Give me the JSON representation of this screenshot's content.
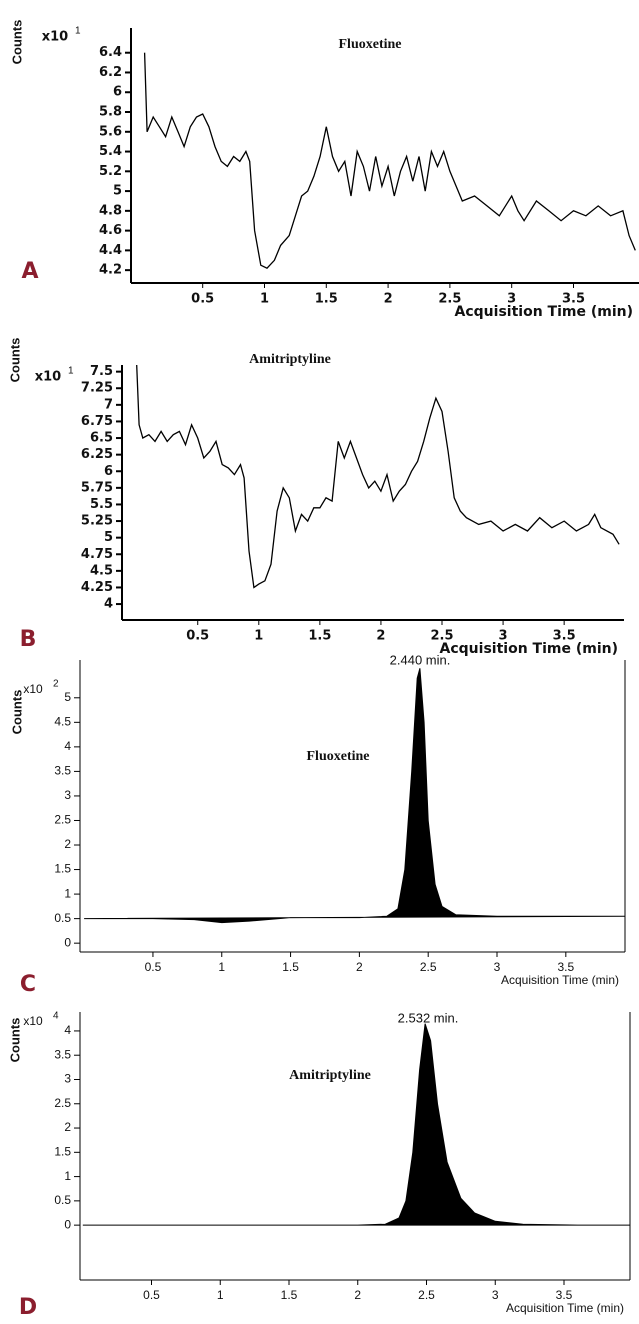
{
  "chart_data": [
    {
      "type": "line",
      "panel_label": "A",
      "title": "Fluoxetine",
      "ylabel": "Counts",
      "scale_label": "x10",
      "scale_power": "1",
      "xlabel": "Acquisition Time (min)",
      "color": "#000000",
      "xlim": [
        -0.08,
        4.03
      ],
      "ylim": [
        4.07,
        6.65
      ],
      "xticks": [
        0.5,
        1,
        1.5,
        2,
        2.5,
        3,
        3.5
      ],
      "yticks": [
        4.2,
        4.4,
        4.6,
        4.8,
        5,
        5.2,
        5.4,
        5.6,
        5.8,
        6,
        6.2,
        6.4
      ],
      "x": [
        0.03,
        0.05,
        0.1,
        0.15,
        0.2,
        0.25,
        0.3,
        0.35,
        0.4,
        0.45,
        0.5,
        0.55,
        0.6,
        0.65,
        0.7,
        0.75,
        0.8,
        0.85,
        0.88,
        0.92,
        0.97,
        1.02,
        1.08,
        1.13,
        1.2,
        1.25,
        1.3,
        1.35,
        1.4,
        1.45,
        1.5,
        1.55,
        1.6,
        1.65,
        1.7,
        1.75,
        1.8,
        1.85,
        1.9,
        1.95,
        2.0,
        2.05,
        2.1,
        2.15,
        2.2,
        2.25,
        2.3,
        2.35,
        2.4,
        2.45,
        2.5,
        2.55,
        2.6,
        2.7,
        2.8,
        2.9,
        3.0,
        3.05,
        3.1,
        3.2,
        3.3,
        3.4,
        3.5,
        3.6,
        3.7,
        3.8,
        3.9,
        3.95,
        4.0
      ],
      "values": [
        6.4,
        5.6,
        5.75,
        5.65,
        5.55,
        5.75,
        5.6,
        5.45,
        5.65,
        5.75,
        5.78,
        5.65,
        5.45,
        5.3,
        5.25,
        5.35,
        5.3,
        5.4,
        5.3,
        4.6,
        4.25,
        4.22,
        4.3,
        4.45,
        4.55,
        4.75,
        4.95,
        5.0,
        5.15,
        5.35,
        5.65,
        5.35,
        5.2,
        5.3,
        4.95,
        5.4,
        5.25,
        5.0,
        5.35,
        5.05,
        5.25,
        4.95,
        5.2,
        5.35,
        5.1,
        5.35,
        5.0,
        5.4,
        5.25,
        5.4,
        5.2,
        5.05,
        4.9,
        4.95,
        4.85,
        4.75,
        4.95,
        4.8,
        4.7,
        4.9,
        4.8,
        4.7,
        4.8,
        4.75,
        4.85,
        4.75,
        4.8,
        4.55,
        4.4
      ]
    },
    {
      "type": "line",
      "panel_label": "B",
      "title": "Amitriptyline",
      "ylabel": "Counts",
      "scale_label": "x10",
      "scale_power": "1",
      "xlabel": "Acquisition Time (min)",
      "color": "#000000",
      "xlim": [
        -0.12,
        3.99
      ],
      "ylim": [
        3.76,
        7.6
      ],
      "xticks": [
        0.5,
        1,
        1.5,
        2,
        2.5,
        3,
        3.5
      ],
      "yticks": [
        4,
        4.25,
        4.5,
        4.75,
        5,
        5.25,
        5.5,
        5.75,
        6,
        6.25,
        6.5,
        6.75,
        7,
        7.25,
        7.5
      ],
      "x": [
        0.0,
        0.02,
        0.05,
        0.1,
        0.15,
        0.2,
        0.25,
        0.3,
        0.35,
        0.4,
        0.45,
        0.5,
        0.55,
        0.6,
        0.65,
        0.7,
        0.75,
        0.8,
        0.85,
        0.88,
        0.92,
        0.96,
        1.0,
        1.05,
        1.1,
        1.15,
        1.2,
        1.25,
        1.3,
        1.35,
        1.4,
        1.45,
        1.5,
        1.55,
        1.6,
        1.65,
        1.7,
        1.75,
        1.8,
        1.85,
        1.9,
        1.95,
        2.0,
        2.05,
        2.1,
        2.15,
        2.2,
        2.25,
        2.3,
        2.35,
        2.4,
        2.45,
        2.5,
        2.55,
        2.6,
        2.65,
        2.7,
        2.8,
        2.9,
        3.0,
        3.1,
        3.2,
        3.3,
        3.4,
        3.5,
        3.6,
        3.7,
        3.75,
        3.8,
        3.9,
        3.95
      ],
      "values": [
        7.6,
        6.7,
        6.5,
        6.55,
        6.45,
        6.6,
        6.45,
        6.55,
        6.6,
        6.4,
        6.7,
        6.5,
        6.2,
        6.3,
        6.45,
        6.1,
        6.05,
        5.95,
        6.1,
        5.9,
        4.8,
        4.25,
        4.3,
        4.35,
        4.6,
        5.4,
        5.75,
        5.6,
        5.1,
        5.35,
        5.25,
        5.45,
        5.45,
        5.6,
        5.55,
        6.45,
        6.2,
        6.45,
        6.2,
        5.95,
        5.75,
        5.85,
        5.7,
        5.95,
        5.55,
        5.7,
        5.8,
        6.0,
        6.15,
        6.45,
        6.8,
        7.1,
        6.9,
        6.3,
        5.6,
        5.4,
        5.3,
        5.2,
        5.25,
        5.1,
        5.2,
        5.1,
        5.3,
        5.15,
        5.25,
        5.1,
        5.2,
        5.35,
        5.15,
        5.05,
        4.9
      ]
    },
    {
      "type": "area",
      "panel_label": "C",
      "title": "Fluoxetine",
      "annotation": "2.440 min.",
      "ylabel": "Counts",
      "scale_label": "x10",
      "scale_power": "2",
      "xlabel": "Acquisition Time (min)",
      "color": "#000000",
      "xlim": [
        -0.03,
        3.93
      ],
      "ylim": [
        -0.18,
        5.77
      ],
      "xticks": [
        0.5,
        1,
        1.5,
        2,
        2.5,
        3,
        3.5
      ],
      "yticks": [
        0,
        0.5,
        1,
        1.5,
        2,
        2.5,
        3,
        3.5,
        4,
        4.5,
        5
      ],
      "x": [
        0,
        0.5,
        0.8,
        1.0,
        1.2,
        1.5,
        2.0,
        2.2,
        2.28,
        2.33,
        2.38,
        2.42,
        2.44,
        2.47,
        2.5,
        2.55,
        2.6,
        2.7,
        3.0,
        3.5,
        3.93
      ],
      "values": [
        0.5,
        0.5,
        0.48,
        0.42,
        0.45,
        0.52,
        0.52,
        0.55,
        0.7,
        1.5,
        3.5,
        5.4,
        5.6,
        4.5,
        2.5,
        1.2,
        0.75,
        0.58,
        0.55,
        0.55,
        0.55
      ]
    },
    {
      "type": "area",
      "panel_label": "D",
      "title": "Amitriptyline",
      "annotation": "2.532 min.",
      "ylabel": "Counts",
      "scale_label": "x10",
      "scale_power": "4",
      "xlabel": "Acquisition Time (min)",
      "color": "#000000",
      "xlim": [
        -0.02,
        3.98
      ],
      "ylim": [
        -1.13,
        4.39
      ],
      "xticks": [
        0.5,
        1,
        1.5,
        2,
        2.5,
        3,
        3.5
      ],
      "yticks": [
        0,
        0.5,
        1,
        1.5,
        2,
        2.5,
        3,
        3.5,
        4
      ],
      "x": [
        0,
        1.0,
        2.0,
        2.2,
        2.3,
        2.35,
        2.4,
        2.45,
        2.49,
        2.53,
        2.58,
        2.65,
        2.75,
        2.85,
        3.0,
        3.2,
        3.6,
        3.98
      ],
      "values": [
        0,
        0,
        0,
        0.02,
        0.15,
        0.5,
        1.5,
        3.2,
        4.15,
        3.8,
        2.5,
        1.3,
        0.55,
        0.25,
        0.08,
        0.02,
        0,
        0
      ]
    }
  ]
}
